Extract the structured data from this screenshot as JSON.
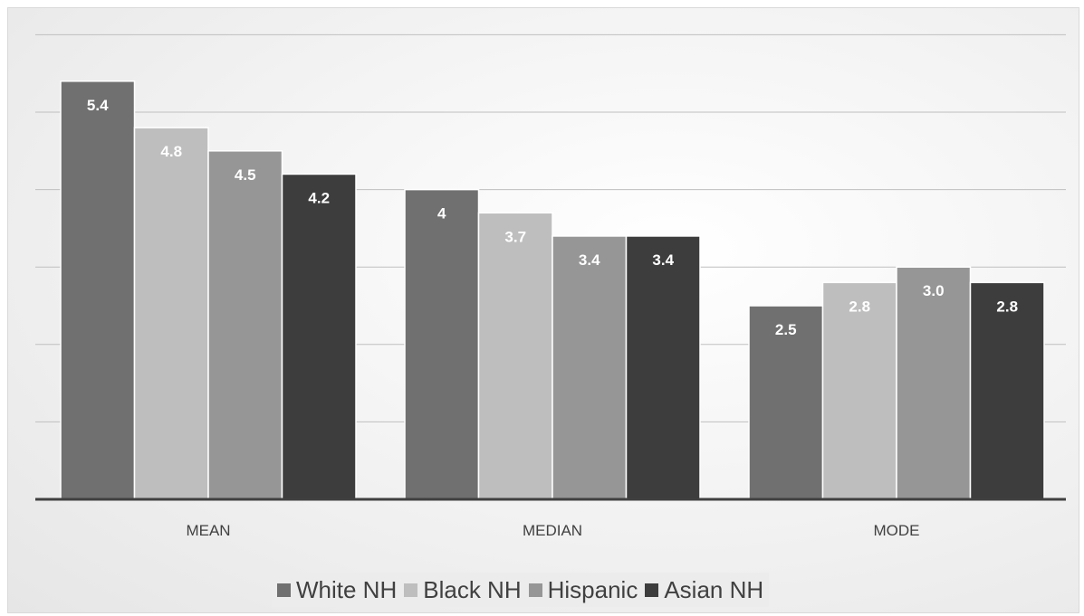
{
  "chart_data": {
    "type": "bar",
    "categories": [
      "MEAN",
      "MEDIAN",
      "MODE"
    ],
    "series": [
      {
        "name": "White NH",
        "color": "#707070",
        "values": [
          5.4,
          4,
          2.5
        ],
        "labels": [
          "5.4",
          "4",
          "2.5"
        ]
      },
      {
        "name": "Black NH",
        "color": "#bebebe",
        "values": [
          4.8,
          3.7,
          2.8
        ],
        "labels": [
          "4.8",
          "3.7",
          "2.8"
        ]
      },
      {
        "name": "Hispanic",
        "color": "#969696",
        "values": [
          4.5,
          3.4,
          3.0
        ],
        "labels": [
          "4.5",
          "3.4",
          "3.0"
        ]
      },
      {
        "name": "Asian NH",
        "color": "#3d3d3d",
        "values": [
          4.2,
          3.4,
          2.8
        ],
        "labels": [
          "4.2",
          "3.4",
          "2.8"
        ]
      }
    ],
    "ylim": [
      0,
      6
    ],
    "gridlines": [
      1,
      2,
      3,
      4,
      5,
      6
    ],
    "grid": true,
    "legend_position": "bottom",
    "title": "",
    "xlabel": "",
    "ylabel": ""
  }
}
